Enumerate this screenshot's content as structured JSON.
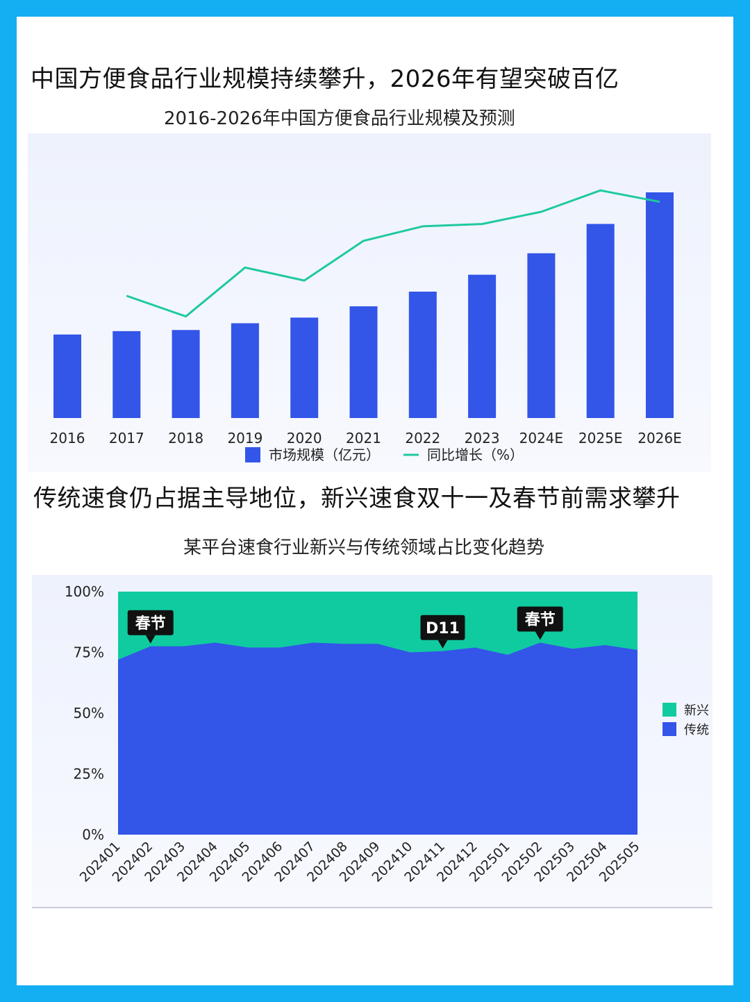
{
  "section1": {
    "headline": "中国方便食品行业规模持续攀升，2026年有望突破百亿",
    "chart_title": "2016-2026年中国方便食品行业规模及预测"
  },
  "section2": {
    "headline": "传统速食仍占据主导地位，新兴速食双十一及春节前需求攀升",
    "chart_title": "某平台速食行业新兴与传统领域占比变化趋势"
  },
  "colors": {
    "background": "#14aef2",
    "bar": "#3355e8",
    "line": "#1ec9a0",
    "emerging": "#10cba0",
    "traditional": "#3355e8",
    "callout": "#111111"
  },
  "chart_data": [
    {
      "type": "bar",
      "title": "2016-2026年中国方便食品行业规模及预测",
      "categories": [
        "2016",
        "2017",
        "2018",
        "2019",
        "2020",
        "2021",
        "2022",
        "2023",
        "2024E",
        "2025E",
        "2026E"
      ],
      "series": [
        {
          "name": "市场规模（亿元）",
          "type": "bar",
          "values": [
            37,
            38.5,
            39,
            42,
            44.5,
            49.5,
            56,
            63.5,
            73,
            86,
            100
          ],
          "axis": "left"
        },
        {
          "name": "同比增长（%）",
          "type": "line",
          "values": [
            null,
            4.0,
            1.3,
            7.7,
            6.0,
            11.2,
            13.1,
            13.4,
            15.0,
            17.8,
            16.3
          ],
          "axis": "right"
        }
      ],
      "ylim": [
        0,
        100
      ],
      "ylim_right": [
        -12,
        22
      ],
      "grid": false,
      "legend": "bottom"
    },
    {
      "type": "area",
      "stacked": "percent",
      "title": "某平台速食行业新兴与传统领域占比变化趋势",
      "categories": [
        "202401",
        "202402",
        "202403",
        "202404",
        "202405",
        "202406",
        "202407",
        "202408",
        "202409",
        "202410",
        "202411",
        "202412",
        "202501",
        "202502",
        "202503",
        "202504",
        "202505"
      ],
      "yticks": [
        "0%",
        "25%",
        "50%",
        "75%",
        "100%"
      ],
      "ylim": [
        0,
        100
      ],
      "series": [
        {
          "name": "传统",
          "values": [
            72,
            77.5,
            77.5,
            79,
            77,
            77,
            79,
            78.5,
            78.5,
            75,
            75.5,
            77,
            74,
            79,
            76.5,
            78,
            76
          ]
        },
        {
          "name": "新兴",
          "values": [
            28,
            22.5,
            22.5,
            21,
            23,
            23,
            21,
            21.5,
            21.5,
            25,
            24.5,
            23,
            26,
            21,
            23.5,
            22,
            24
          ]
        }
      ],
      "annotations": [
        {
          "label": "春节",
          "category": "202402"
        },
        {
          "label": "D11",
          "category": "202411"
        },
        {
          "label": "春节",
          "category": "202502"
        }
      ],
      "legend": "right",
      "legend_entries": [
        "新兴",
        "传统"
      ],
      "grid": false
    }
  ]
}
